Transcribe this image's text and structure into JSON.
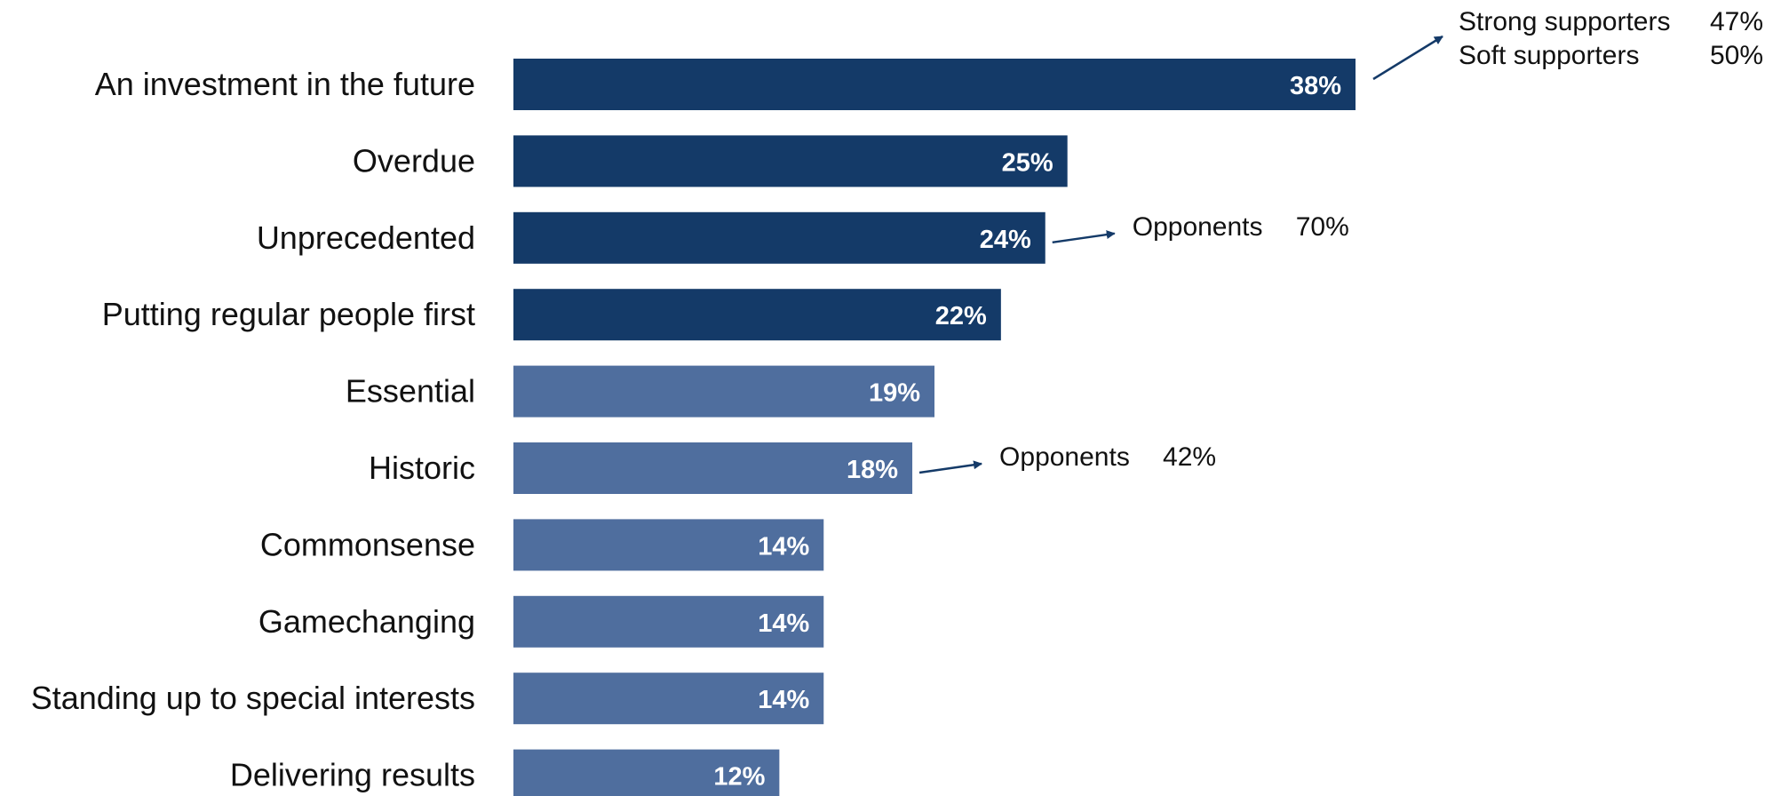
{
  "chart_data": {
    "type": "bar",
    "orientation": "horizontal",
    "categories": [
      "An investment in the future",
      "Overdue",
      "Unprecedented",
      "Putting regular people first",
      "Essential",
      "Historic",
      "Commonsense",
      "Gamechanging",
      "Standing up to special interests",
      "Delivering results"
    ],
    "values": [
      38,
      25,
      24,
      22,
      19,
      18,
      14,
      14,
      14,
      12
    ],
    "value_labels": [
      "38%",
      "25%",
      "24%",
      "22%",
      "19%",
      "18%",
      "14%",
      "14%",
      "14%",
      "12%"
    ],
    "xlim": [
      0,
      38
    ],
    "highlighted_count": 4,
    "grid": false,
    "legend": "none",
    "colors": {
      "highlight": "#143a68",
      "normal": "#4f6e9e",
      "label_text": "#111111",
      "value_text": "#ffffff",
      "arrow": "#143a68"
    },
    "annotations": [
      {
        "category": "An investment in the future",
        "lines": [
          {
            "label": "Strong supporters",
            "value": "47%"
          },
          {
            "label": "Soft supporters",
            "value": "50%"
          }
        ]
      },
      {
        "category": "Unprecedented",
        "lines": [
          {
            "label": "Opponents",
            "value": "70%"
          }
        ]
      },
      {
        "category": "Historic",
        "lines": [
          {
            "label": "Opponents",
            "value": "42%"
          }
        ]
      }
    ]
  }
}
